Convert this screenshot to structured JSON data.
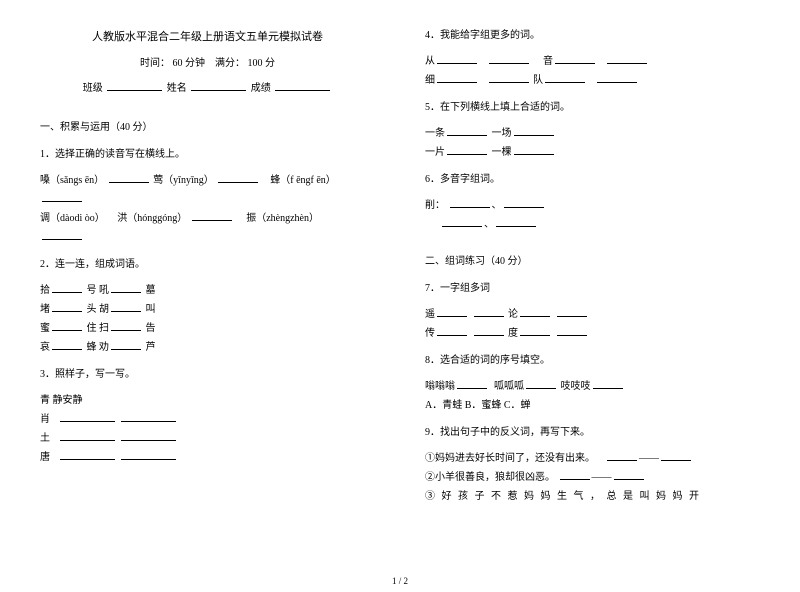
{
  "header": {
    "title": "人教版水平混合二年级上册语文五单元模拟试卷",
    "time_label": "时间：",
    "time_value": "60 分钟",
    "score_label": "满分：",
    "score_value": "100 分",
    "class_label": "班级",
    "name_label": "姓名",
    "result_label": "成绩"
  },
  "section1": {
    "title": "一、积累与运用（40 分）"
  },
  "q1": {
    "title": "1．选择正确的读音写在横线上。",
    "i1a": "嗓（sǎngs ēn）",
    "i1b": "莺（yīnyīng）",
    "i1c": "蜂（f ēngf ēn）",
    "i2a": "调（dàodi òo）",
    "i2b": "洪（hónggóng）",
    "i2c": "振（zhèngzhèn）"
  },
  "q2": {
    "title": "2．连一连，组成词语。",
    "r1": "拾",
    "r1b": " 号  吼",
    "r1c": " 墓",
    "r2": "堵",
    "r2b": " 头  胡",
    "r2c": " 叫",
    "r3": "蜜",
    "r3b": " 住  扫",
    "r3c": " 告",
    "r4": "哀",
    "r4b": " 蜂  劝",
    "r4c": " 芦"
  },
  "q3": {
    "title": "3．照样子，写一写。",
    "ex": "青  静安静",
    "c1": "肖",
    "c2": "土",
    "c3": "唐"
  },
  "q4": {
    "title": "4．我能给字组更多的词。",
    "c1": "从",
    "c2": "音",
    "c3": "细",
    "c4": "队"
  },
  "q5": {
    "title": "5．在下列横线上填上合适的词。",
    "l1a": "一条",
    "l1b": " 一场",
    "l2a": "一片",
    "l2b": " 一棵"
  },
  "q6": {
    "title": "6．多音字组词。",
    "c": "削："
  },
  "section2": {
    "title": "二、组词练习（40 分）"
  },
  "q7": {
    "title": "7．一字组多词",
    "c1": "遥",
    "c2": " 论",
    "c3": "传",
    "c4": " 度"
  },
  "q8": {
    "title": "8．选合适的词的序号填空。",
    "l1a": "嗡嗡嗡",
    "l1b": "呱呱呱",
    "l1c": "吱吱吱",
    "opts": "A．青蛙   B．蜜蜂   C．蝉"
  },
  "q9": {
    "title": "9．找出句子中的反义词，再写下来。",
    "s1": "①妈妈进去好长时间了，还没有出来。",
    "s2": "②小羊很善良，狼却很凶恶。",
    "s3": "③ 好 孩 子 不 惹 妈 妈 生 气 ， 总 是 叫 妈 妈 开"
  },
  "footer": {
    "page": "1 / 2"
  }
}
